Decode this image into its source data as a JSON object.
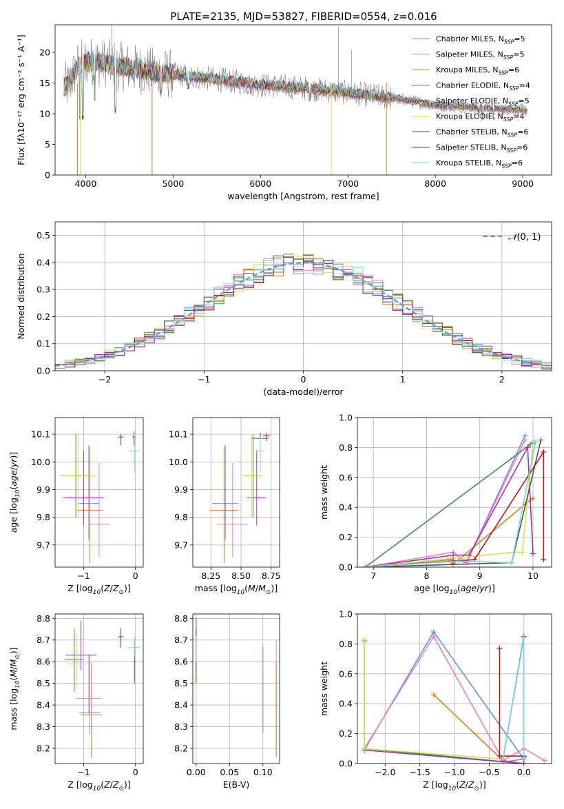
{
  "title": "PLATE=2135, MJD=53827, FIBERID=0554, z=0.016",
  "colors": {
    "chabrier_miles": "#6b8fd9",
    "salpeter_miles": "#e87fbf",
    "kroupa_miles": "#e07b20",
    "chabrier_elodie": "#3f8f4e",
    "salpeter_elodie": "#9b30b8",
    "kroupa_elodie": "#c8e84a",
    "chabrier_stelib": "#505050",
    "salpeter_stelib": "#a81c1c",
    "kroupa_stelib": "#7dd3df"
  },
  "chart_data": [
    {
      "id": "spectrum",
      "type": "line",
      "xlabel": "wavelength [Angstrom, rest frame]",
      "ylabel": "Flux [fλ10⁻¹⁷ erg cm⁻² s⁻¹ A⁻¹]",
      "xlim": [
        3650,
        9330
      ],
      "ylim": [
        0,
        24.5
      ],
      "xticks": [
        4000,
        5000,
        6000,
        7000,
        8000,
        9000
      ],
      "yticks": [
        0,
        5,
        10,
        15,
        20
      ],
      "legend_position": "top-right",
      "continuum": [
        [
          3750,
          14.5
        ],
        [
          3800,
          14.5
        ],
        [
          3900,
          17.5
        ],
        [
          4000,
          18.6
        ],
        [
          4200,
          18.3
        ],
        [
          4500,
          17.5
        ],
        [
          4800,
          16.7
        ],
        [
          5000,
          16.4
        ],
        [
          5500,
          15.6
        ],
        [
          6000,
          14.7
        ],
        [
          6500,
          14.2
        ],
        [
          7000,
          13.4
        ],
        [
          7500,
          12.6
        ],
        [
          8000,
          11.4
        ],
        [
          8500,
          11.0
        ],
        [
          9000,
          10.6
        ],
        [
          9050,
          10.5
        ]
      ],
      "series": [
        {
          "name": "Chabrier MILES, N$_{SSP}$=5",
          "color_key": "chabrier_miles"
        },
        {
          "name": "Salpeter MILES, N$_{SSP}$=5",
          "color_key": "salpeter_miles"
        },
        {
          "name": "Kroupa MILES, N$_{SSP}$=6",
          "color_key": "kroupa_miles"
        },
        {
          "name": "Chabrier ELODIE, N$_{SSP}$=4",
          "color_key": "chabrier_elodie"
        },
        {
          "name": "Salpeter ELODIE, N$_{SSP}$=5",
          "color_key": "salpeter_elodie"
        },
        {
          "name": "Kroupa ELODIE, N$_{SSP}$=4",
          "color_key": "kroupa_elodie"
        },
        {
          "name": "Chabrier STELIB, N$_{SSP}$=6",
          "color_key": "chabrier_stelib"
        },
        {
          "name": "Salpeter STELIB, N$_{SSP}$=6",
          "color_key": "salpeter_stelib"
        },
        {
          "name": "Kroupa STELIB, N$_{SSP}$=6",
          "color_key": "kroupa_stelib"
        }
      ]
    },
    {
      "id": "residuals",
      "type": "histogram",
      "xlabel": "(data-model)/error",
      "ylabel": "Normed distribution",
      "xlim": [
        -2.5,
        2.5
      ],
      "ylim": [
        0,
        0.55
      ],
      "xticks": [
        -2,
        -1,
        0,
        1,
        2
      ],
      "yticks": [
        0.0,
        0.1,
        0.2,
        0.3,
        0.4,
        0.5
      ],
      "bin_width": 0.1,
      "legend": "$\\mathcal{N}(0,1)$",
      "legend_position": "top-right",
      "grid": true
    },
    {
      "id": "age_vs_Z",
      "type": "errorbar",
      "xlabel": "Z [log$_{10}$($Z/Z_\\odot$)]",
      "ylabel": "age  [log$_{10}$($age/yr$)]",
      "xlim": [
        -1.55,
        0.15
      ],
      "ylim": [
        9.62,
        10.16
      ],
      "xticks": [
        -1,
        0
      ],
      "yticks": [
        9.7,
        9.8,
        9.9,
        10.0,
        10.1
      ],
      "grid": true,
      "points": [
        {
          "color_key": "chabrier_miles",
          "x": -0.9,
          "xerr": 0.2,
          "y": 9.85,
          "yerr": [
            0.13,
            0.21
          ]
        },
        {
          "color_key": "salpeter_miles",
          "x": -0.7,
          "xerr": 0.2,
          "y": 9.775,
          "yerr": [
            0.12,
            0.22
          ]
        },
        {
          "color_key": "kroupa_miles",
          "x": -0.88,
          "xerr": 0.25,
          "y": 9.825,
          "yerr": [
            0.19,
            0.23
          ]
        },
        {
          "color_key": "chabrier_elodie",
          "x": -1.15,
          "xerr": 0.3,
          "y": 9.95,
          "yerr": [
            0.15,
            0.15
          ]
        },
        {
          "color_key": "salpeter_elodie",
          "x": -1.0,
          "xerr": 0.4,
          "y": 9.87,
          "yerr": [
            0.1,
            0.17
          ]
        },
        {
          "color_key": "kroupa_elodie",
          "x": -1.1,
          "xerr": 0.35,
          "y": 9.95,
          "yerr": [
            0.15,
            0.15
          ]
        },
        {
          "color_key": "chabrier_stelib",
          "x": -0.03,
          "xerr": 0.03,
          "y": 10.09,
          "yerr": [
            0.03,
            0.02
          ]
        },
        {
          "color_key": "salpeter_stelib",
          "x": -0.28,
          "xerr": 0.05,
          "y": 10.09,
          "yerr": [
            0.03,
            0.01
          ]
        },
        {
          "color_key": "kroupa_stelib",
          "x": -0.02,
          "xerr": 0.12,
          "y": 10.04,
          "yerr": [
            0.08,
            0.05
          ]
        }
      ]
    },
    {
      "id": "age_vs_mass",
      "type": "errorbar",
      "xlabel": "mass [log$_{10}$($M/M_\\odot$)]",
      "ylabel": "",
      "xlim": [
        8.1,
        8.82
      ],
      "ylim": [
        9.62,
        10.16
      ],
      "xticks": [
        8.25,
        8.5,
        8.75
      ],
      "yticks": [
        9.7,
        9.8,
        9.9,
        10.0,
        10.1
      ],
      "grid": true,
      "points": [
        {
          "color_key": "chabrier_miles",
          "x": 8.37,
          "xerr": 0.11,
          "y": 9.85,
          "yerr": [
            0.13,
            0.21
          ]
        },
        {
          "color_key": "salpeter_miles",
          "x": 8.43,
          "xerr": 0.13,
          "y": 9.775,
          "yerr": [
            0.12,
            0.22
          ]
        },
        {
          "color_key": "kroupa_miles",
          "x": 8.36,
          "xerr": 0.12,
          "y": 9.825,
          "yerr": [
            0.19,
            0.23
          ]
        },
        {
          "color_key": "chabrier_elodie",
          "x": 8.6,
          "xerr": 0.07,
          "y": 9.95,
          "yerr": [
            0.15,
            0.15
          ]
        },
        {
          "color_key": "salpeter_elodie",
          "x": 8.63,
          "xerr": 0.08,
          "y": 9.87,
          "yerr": [
            0.1,
            0.17
          ]
        },
        {
          "color_key": "kroupa_elodie",
          "x": 8.59,
          "xerr": 0.08,
          "y": 9.95,
          "yerr": [
            0.15,
            0.15
          ]
        },
        {
          "color_key": "chabrier_stelib",
          "x": 8.66,
          "xerr": 0.07,
          "y": 10.085,
          "yerr": [
            0.03,
            0.02
          ]
        },
        {
          "color_key": "salpeter_stelib",
          "x": 8.71,
          "xerr": 0.03,
          "y": 10.095,
          "yerr": [
            0.02,
            0.01
          ]
        },
        {
          "color_key": "kroupa_stelib",
          "x": 8.66,
          "xerr": 0.04,
          "y": 10.04,
          "yerr": [
            0.08,
            0.05
          ]
        }
      ]
    },
    {
      "id": "weight_vs_age",
      "type": "line",
      "xlabel": "age  [log$_{10}$($age/yr$)]",
      "ylabel": "mass weight",
      "xlim": [
        6.7,
        10.35
      ],
      "ylim": [
        0,
        1.0
      ],
      "xticks": [
        7,
        8,
        9,
        10
      ],
      "yticks": [
        0.0,
        0.2,
        0.4,
        0.6,
        0.8,
        1.0
      ],
      "grid": true,
      "series": [
        {
          "color_key": "chabrier_miles",
          "x": [
            6.85,
            8.45,
            8.75,
            9.85
          ],
          "y": [
            0.0,
            0.05,
            0.03,
            0.88
          ]
        },
        {
          "color_key": "salpeter_miles",
          "x": [
            6.85,
            8.5,
            8.75,
            9.85
          ],
          "y": [
            0.0,
            0.1,
            0.03,
            0.85
          ]
        },
        {
          "color_key": "kroupa_miles",
          "x": [
            6.85,
            8.4,
            8.5,
            9.85,
            10.0
          ],
          "y": [
            0.0,
            0.05,
            0.02,
            0.42,
            0.46
          ]
        },
        {
          "color_key": "chabrier_elodie",
          "x": [
            6.85,
            9.95,
            10.0
          ],
          "y": [
            0.0,
            0.82,
            0.83
          ]
        },
        {
          "color_key": "salpeter_elodie",
          "x": [
            6.85,
            8.5,
            8.8,
            9.9,
            10.0
          ],
          "y": [
            0.0,
            0.08,
            0.08,
            0.8,
            0.09
          ]
        },
        {
          "color_key": "kroupa_elodie",
          "x": [
            6.85,
            9.65,
            9.8,
            10.0
          ],
          "y": [
            0.0,
            0.1,
            0.1,
            0.82
          ]
        },
        {
          "color_key": "chabrier_stelib",
          "x": [
            6.85,
            9.6,
            10.15
          ],
          "y": [
            0.0,
            0.03,
            0.85
          ]
        },
        {
          "color_key": "salpeter_stelib",
          "x": [
            6.85,
            8.5,
            8.9,
            10.2,
            10.2
          ],
          "y": [
            0.0,
            0.04,
            0.05,
            0.77,
            0.05
          ]
        },
        {
          "color_key": "kroupa_stelib",
          "x": [
            6.85,
            8.6,
            9.6,
            10.05
          ],
          "y": [
            0.0,
            0.04,
            0.03,
            0.84
          ]
        }
      ]
    },
    {
      "id": "mass_vs_Z",
      "type": "errorbar",
      "xlabel": "Z [log$_{10}$($Z/Z_\\odot$)]",
      "ylabel": "mass [log$_{10}$($M/M_\\odot$)]",
      "xlim": [
        -1.55,
        0.15
      ],
      "ylim": [
        8.13,
        8.82
      ],
      "xticks": [
        -1,
        0
      ],
      "yticks": [
        8.2,
        8.3,
        8.4,
        8.5,
        8.6,
        8.7,
        8.8
      ],
      "grid": true,
      "points": [
        {
          "color_key": "chabrier_miles",
          "x": -0.88,
          "xerr": 0.2,
          "y": 8.365,
          "yerr": [
            0.1,
            0.27
          ]
        },
        {
          "color_key": "salpeter_miles",
          "x": -0.9,
          "xerr": 0.25,
          "y": 8.43,
          "yerr": [
            0.07,
            0.2
          ]
        },
        {
          "color_key": "kroupa_miles",
          "x": -0.85,
          "xerr": 0.2,
          "y": 8.355,
          "yerr": [
            0.2,
            0.24
          ]
        },
        {
          "color_key": "chabrier_elodie",
          "x": -1.18,
          "xerr": 0.18,
          "y": 8.61,
          "yerr": [
            0.15,
            0.14
          ]
        },
        {
          "color_key": "salpeter_elodie",
          "x": -1.05,
          "xerr": 0.3,
          "y": 8.63,
          "yerr": [
            0.07,
            0.16
          ]
        },
        {
          "color_key": "kroupa_elodie",
          "x": -1.13,
          "xerr": 0.2,
          "y": 8.59,
          "yerr": [
            0.12,
            0.14
          ]
        },
        {
          "color_key": "chabrier_stelib",
          "x": -0.02,
          "xerr": 0.02,
          "y": 8.6,
          "yerr": [
            0.1,
            0.1
          ]
        },
        {
          "color_key": "salpeter_stelib",
          "x": -0.28,
          "xerr": 0.05,
          "y": 8.715,
          "yerr": [
            0.05,
            0.04
          ]
        },
        {
          "color_key": "kroupa_stelib",
          "x": -0.02,
          "xerr": 0.12,
          "y": 8.665,
          "yerr": [
            0.04,
            0.05
          ]
        }
      ]
    },
    {
      "id": "mass_vs_ebv",
      "type": "errorbar",
      "xlabel": "E(B-V)",
      "ylabel": "",
      "xlim": [
        -0.005,
        0.125
      ],
      "ylim": [
        8.13,
        8.82
      ],
      "xticks": [
        0.0,
        0.05,
        0.1
      ],
      "yticks": [
        8.2,
        8.3,
        8.4,
        8.5,
        8.6,
        8.7,
        8.8
      ],
      "grid": true,
      "points": [
        {
          "color_key": "chabrier_miles",
          "x": 0.1,
          "xerr": 0,
          "y": 8.47,
          "yerr": [
            0.2,
            0.2
          ]
        },
        {
          "color_key": "salpeter_miles",
          "x": 0.12,
          "xerr": 0,
          "y": 8.43,
          "yerr": [
            0.27,
            0.27
          ]
        },
        {
          "color_key": "kroupa_miles",
          "x": 0.12,
          "xerr": 0,
          "y": 8.38,
          "yerr": [
            0.22,
            0.22
          ]
        },
        {
          "color_key": "chabrier_elodie",
          "x": 0.0,
          "xerr": 0,
          "y": 8.6,
          "yerr": [
            0.1,
            0.1
          ]
        },
        {
          "color_key": "salpeter_elodie",
          "x": 0.0,
          "xerr": 0,
          "y": 8.65,
          "yerr": [
            0.15,
            0.15
          ]
        },
        {
          "color_key": "kroupa_elodie",
          "x": 0.0,
          "xerr": 0,
          "y": 8.6,
          "yerr": [
            0.12,
            0.12
          ]
        },
        {
          "color_key": "chabrier_stelib",
          "x": 0.0,
          "xerr": 0,
          "y": 8.6,
          "yerr": [
            0.1,
            0.1
          ]
        },
        {
          "color_key": "salpeter_stelib",
          "x": 0.0,
          "xerr": 0,
          "y": 8.7,
          "yerr": [
            0.05,
            0.05
          ]
        },
        {
          "color_key": "kroupa_stelib",
          "x": 0.0,
          "xerr": 0,
          "y": 8.66,
          "yerr": [
            0.06,
            0.06
          ]
        }
      ]
    },
    {
      "id": "weight_vs_Z",
      "type": "line",
      "xlabel": "Z [log$_{10}$($Z/Z_\\odot$)]",
      "ylabel": "mass weight",
      "xlim": [
        -2.4,
        0.4
      ],
      "ylim": [
        0,
        1.0
      ],
      "xticks": [
        -2.0,
        -1.5,
        -1.0,
        -0.5,
        0.0
      ],
      "yticks": [
        0.0,
        0.2,
        0.4,
        0.6,
        0.8,
        1.0
      ],
      "grid": true,
      "series": [
        {
          "color_key": "chabrier_miles",
          "x": [
            -2.3,
            -1.3,
            0.0,
            -0.3
          ],
          "y": [
            0.09,
            0.88,
            0.03,
            0.01
          ]
        },
        {
          "color_key": "salpeter_miles",
          "x": [
            -2.3,
            -1.3,
            -0.3,
            0.0,
            0.3
          ],
          "y": [
            0.1,
            0.85,
            0.02,
            0.1,
            0.02
          ]
        },
        {
          "color_key": "kroupa_miles",
          "x": [
            -1.3,
            -0.3,
            0.0
          ],
          "y": [
            0.46,
            0.02,
            0.0
          ]
        },
        {
          "color_key": "chabrier_elodie",
          "x": [
            -2.3,
            -2.3,
            0.0
          ],
          "y": [
            0.82,
            0.1,
            0.0
          ]
        },
        {
          "color_key": "salpeter_elodie",
          "x": [
            -2.3,
            0.0
          ],
          "y": [
            0.09,
            0.0
          ]
        },
        {
          "color_key": "kroupa_elodie",
          "x": [
            -2.3,
            -2.3,
            -0.3
          ],
          "y": [
            0.83,
            0.1,
            0.03
          ]
        },
        {
          "color_key": "chabrier_stelib",
          "x": [
            -0.3,
            -0.3,
            0.0,
            0.0
          ],
          "y": [
            0.03,
            0.03,
            0.85,
            0.05
          ]
        },
        {
          "color_key": "salpeter_stelib",
          "x": [
            -0.35,
            -0.35,
            0.0,
            0.0
          ],
          "y": [
            0.77,
            0.05,
            0.05,
            0.04
          ]
        },
        {
          "color_key": "kroupa_stelib",
          "x": [
            -0.3,
            0.0,
            0.0
          ],
          "y": [
            0.03,
            0.84,
            0.04
          ]
        }
      ]
    }
  ]
}
